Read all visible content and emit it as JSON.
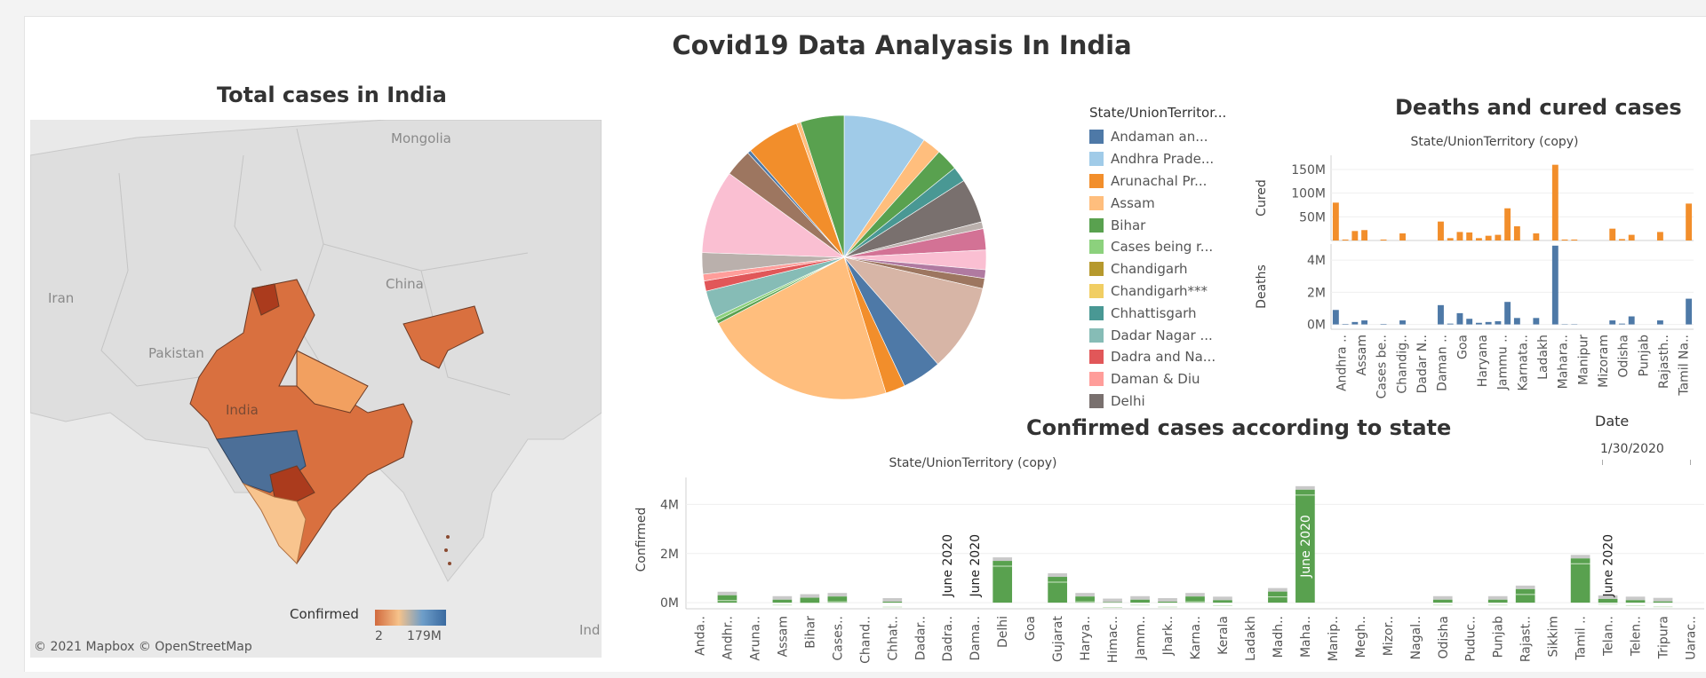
{
  "dashboard": {
    "title": "Covid19 Data Analyasis In India"
  },
  "map": {
    "title": "Total cases in India",
    "labels": {
      "mongolia": "Mongolia",
      "china": "China",
      "iran": "Iran",
      "pakistan": "Pakistan",
      "india": "India",
      "ind": "Ind"
    },
    "copyright": "© 2021 Mapbox  © OpenStreetMap",
    "legend_label": "Confirmed",
    "legend_min": "2",
    "legend_max": "179M",
    "colors": {
      "land": "#dedede",
      "water": "#e9e9e9",
      "india_base": "#d9703f",
      "maharashtra": "#4c6f98",
      "high": "#ab3b1d",
      "south": "#f8c48e",
      "mid": "#e7874b"
    }
  },
  "pie_legend": {
    "title": "State/UnionTerritor...",
    "items": [
      {
        "label": "Andaman an...",
        "color": "#4e79a7"
      },
      {
        "label": "Andhra Prade...",
        "color": "#a0cbe8"
      },
      {
        "label": "Arunachal Pr...",
        "color": "#f28e2b"
      },
      {
        "label": "Assam",
        "color": "#ffbe7d"
      },
      {
        "label": "Bihar",
        "color": "#59a14f"
      },
      {
        "label": "Cases being r...",
        "color": "#8cd17d"
      },
      {
        "label": "Chandigarh",
        "color": "#b6992d"
      },
      {
        "label": "Chandigarh***",
        "color": "#f1ce63"
      },
      {
        "label": "Chhattisgarh",
        "color": "#499894"
      },
      {
        "label": "Dadar Nagar ...",
        "color": "#86bcb6"
      },
      {
        "label": "Dadra and Na...",
        "color": "#e15759"
      },
      {
        "label": "Daman & Diu",
        "color": "#ff9d9a"
      },
      {
        "label": "Delhi",
        "color": "#79706e"
      }
    ]
  },
  "date_filter": {
    "label": "Date",
    "value": "1/30/2020"
  },
  "chart_data": [
    {
      "type": "pie",
      "title": "",
      "slices": [
        {
          "color": "#a0cbe8",
          "value": 9.8
        },
        {
          "color": "#ffbe7d",
          "value": 2.2
        },
        {
          "color": "#59a14f",
          "value": 2.6
        },
        {
          "color": "#499894",
          "value": 1.8
        },
        {
          "color": "#79706e",
          "value": 5.2
        },
        {
          "color": "#bab0ac",
          "value": 0.8
        },
        {
          "color": "#d37295",
          "value": 2.5
        },
        {
          "color": "#fabfd2",
          "value": 2.3
        },
        {
          "color": "#b07aa1",
          "value": 1.0
        },
        {
          "color": "#9d7660",
          "value": 1.2
        },
        {
          "color": "#d7b5a6",
          "value": 10.3
        },
        {
          "color": "#4e79a7",
          "value": 4.6
        },
        {
          "color": "#f28e2b",
          "value": 2.3
        },
        {
          "color": "#ffbe7d",
          "value": 22.7
        },
        {
          "color": "#59a14f",
          "value": 0.4
        },
        {
          "color": "#8cd17d",
          "value": 0.4
        },
        {
          "color": "#86bcb6",
          "value": 3.2
        },
        {
          "color": "#e15759",
          "value": 1.2
        },
        {
          "color": "#ff9d9a",
          "value": 0.8
        },
        {
          "color": "#bab0ac",
          "value": 2.5
        },
        {
          "color": "#fabfd2",
          "value": 9.8
        },
        {
          "color": "#9d7660",
          "value": 3.2
        },
        {
          "color": "#4e79a7",
          "value": 0.4
        },
        {
          "color": "#f28e2b",
          "value": 6.2
        },
        {
          "color": "#ffbe7d",
          "value": 0.5
        },
        {
          "color": "#59a14f",
          "value": 5.1
        }
      ]
    },
    {
      "type": "bar",
      "title": "Deaths and cured cases",
      "subtitle": "State/UnionTerritory (copy)",
      "categories": [
        "Andhra ..",
        "Assam",
        "Cases be..",
        "Chandig..",
        "Dadar N..",
        "Daman ..",
        "Goa",
        "Haryana",
        "Jammu ..",
        "Karnata..",
        "Ladakh",
        "Mahara..",
        "Manipur",
        "Mizoram",
        "Odisha",
        "Punjab",
        "Rajasth..",
        "Tamil Na.."
      ],
      "panels": [
        {
          "ylabel": "Cured",
          "color": "#f28e2b",
          "ylim": [
            0,
            180
          ],
          "ticks": [
            {
              "v": 50,
              "label": "50M"
            },
            {
              "v": 100,
              "label": "100M"
            },
            {
              "v": 150,
              "label": "150M"
            }
          ],
          "values": [
            80,
            2,
            20,
            22,
            0,
            2,
            0,
            15,
            0,
            0,
            0,
            40,
            5,
            18,
            17,
            5,
            10,
            12,
            68,
            30,
            0,
            15,
            0,
            160,
            2,
            2,
            0,
            0,
            0,
            25,
            3,
            12,
            0,
            0,
            18,
            0,
            0,
            78
          ]
        },
        {
          "ylabel": "Deaths",
          "color": "#4e79a7",
          "ylim": [
            -0.3,
            5
          ],
          "ticks": [
            {
              "v": 0,
              "label": "0M"
            },
            {
              "v": 2,
              "label": "2M"
            },
            {
              "v": 4,
              "label": "4M"
            }
          ],
          "values": [
            0.9,
            0.03,
            0.15,
            0.25,
            0,
            0.03,
            0,
            0.25,
            0,
            0,
            0,
            1.2,
            0.05,
            0.7,
            0.35,
            0.1,
            0.15,
            0.2,
            1.4,
            0.4,
            0,
            0.4,
            0,
            4.9,
            0.02,
            0.02,
            0,
            0,
            0,
            0.25,
            0.05,
            0.5,
            0,
            0,
            0.25,
            0,
            0,
            1.6
          ]
        }
      ]
    },
    {
      "type": "bar",
      "title": "Confirmed cases according to state",
      "subtitle": "State/UnionTerritory (copy)",
      "ylabel": "Confirmed",
      "ylim": [
        -0.25,
        5.1
      ],
      "ticks": [
        {
          "v": 0,
          "label": "0M"
        },
        {
          "v": 2,
          "label": "2M"
        },
        {
          "v": 4,
          "label": "4M"
        }
      ],
      "categories": [
        "Anda..",
        "Andhr..",
        "Aruna..",
        "Assam",
        "Bihar",
        "Cases..",
        "Chand..",
        "Chhat..",
        "Dadar..",
        "Dadra..",
        "Dama..",
        "Delhi",
        "Goa",
        "Gujarat",
        "Harya..",
        "Himac..",
        "Jamm..",
        "Jhark..",
        "Karna..",
        "Kerala",
        "Ladakh",
        "Madh..",
        "Maha..",
        "Manip..",
        "Megh..",
        "Mizor..",
        "Nagal..",
        "Odisha",
        "Puduc..",
        "Punjab",
        "Rajast..",
        "Sikkim",
        "Tamil ..",
        "Telan..",
        "Telen..",
        "Tripura",
        "Uarac.."
      ],
      "values": [
        0,
        0.3,
        0,
        0.12,
        0.2,
        0.25,
        0,
        0.04,
        0,
        0,
        0,
        1.7,
        0,
        1.05,
        0.25,
        0.02,
        0.12,
        0.04,
        0.25,
        0.1,
        0,
        0.45,
        4.6,
        0,
        0,
        0,
        0,
        0.12,
        0,
        0.12,
        0.55,
        0,
        1.8,
        0.15,
        0.1,
        0.05,
        0
      ],
      "annotations": [
        {
          "category": "Dadra..",
          "text": "June 2020"
        },
        {
          "category": "Dama..",
          "text": "June 2020"
        },
        {
          "category": "Maha..",
          "text": "June 2020"
        },
        {
          "category": "Telan..",
          "text": "June 2020"
        }
      ],
      "color": "#59a14f"
    }
  ]
}
